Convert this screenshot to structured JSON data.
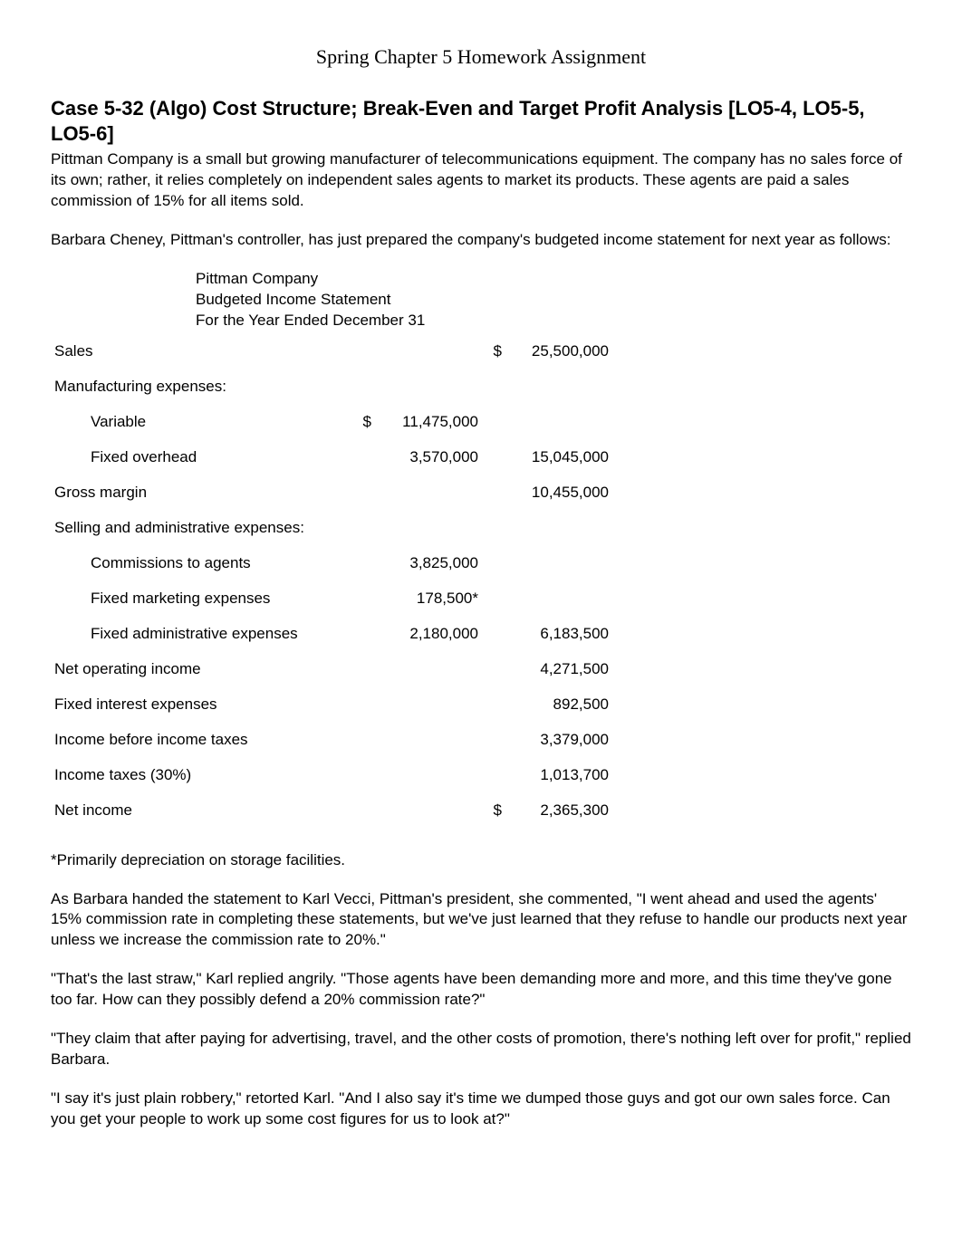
{
  "page_title": "Spring Chapter 5 Homework Assignment",
  "case_heading": "Case 5-32 (Algo) Cost Structure; Break-Even and Target Profit Analysis [LO5-4, LO5-5, LO5-6]",
  "intro_para_1": "Pittman Company is a small but growing manufacturer of telecommunications equipment. The company has no sales force of its own; rather, it relies completely on independent sales agents to market its products. These agents are paid a sales commission of 15% for all items sold.",
  "intro_para_2": "Barbara Cheney, Pittman's controller, has just prepared the company's budgeted income statement for next year as follows:",
  "statement": {
    "header_line1": "Pittman Company",
    "header_line2": "Budgeted Income Statement",
    "header_line3": "For the Year Ended December 31",
    "rows": [
      {
        "label": "Sales",
        "indent": false,
        "col1_cur": "",
        "col1": "",
        "col2_cur": "$",
        "col2": "25,500,000"
      },
      {
        "label": "Manufacturing expenses:",
        "indent": false,
        "col1_cur": "",
        "col1": "",
        "col2_cur": "",
        "col2": ""
      },
      {
        "label": "Variable",
        "indent": true,
        "col1_cur": "$",
        "col1": "11,475,000",
        "col2_cur": "",
        "col2": ""
      },
      {
        "label": "Fixed overhead",
        "indent": true,
        "col1_cur": "",
        "col1": "3,570,000",
        "col2_cur": "",
        "col2": "15,045,000"
      },
      {
        "label": "Gross margin",
        "indent": false,
        "col1_cur": "",
        "col1": "",
        "col2_cur": "",
        "col2": "10,455,000"
      },
      {
        "label": "Selling and administrative expenses:",
        "indent": false,
        "col1_cur": "",
        "col1": "",
        "col2_cur": "",
        "col2": ""
      },
      {
        "label": "Commissions to agents",
        "indent": true,
        "col1_cur": "",
        "col1": "3,825,000",
        "col2_cur": "",
        "col2": ""
      },
      {
        "label": "Fixed marketing expenses",
        "indent": true,
        "col1_cur": "",
        "col1": "178,500*",
        "col2_cur": "",
        "col2": ""
      },
      {
        "label": "Fixed administrative expenses",
        "indent": true,
        "col1_cur": "",
        "col1": "2,180,000",
        "col2_cur": "",
        "col2": "6,183,500"
      },
      {
        "label": "Net operating income",
        "indent": false,
        "col1_cur": "",
        "col1": "",
        "col2_cur": "",
        "col2": "4,271,500"
      },
      {
        "label": "Fixed interest expenses",
        "indent": false,
        "col1_cur": "",
        "col1": "",
        "col2_cur": "",
        "col2": "892,500"
      },
      {
        "label": "Income before income taxes",
        "indent": false,
        "col1_cur": "",
        "col1": "",
        "col2_cur": "",
        "col2": "3,379,000"
      },
      {
        "label": "Income taxes (30%)",
        "indent": false,
        "col1_cur": "",
        "col1": "",
        "col2_cur": "",
        "col2": "1,013,700"
      },
      {
        "label": "Net income",
        "indent": false,
        "col1_cur": "",
        "col1": "",
        "col2_cur": "$",
        "col2": "2,365,300"
      }
    ]
  },
  "footnote": "*Primarily depreciation on storage facilities.",
  "dialog_1": "As Barbara handed the statement to Karl Vecci, Pittman's president, she commented, \"I went ahead and used the agents' 15% commission rate in completing these statements, but we've just learned that they refuse to handle our products next year unless we increase the commission rate to 20%.\"",
  "dialog_2": "\"That's the last straw,\" Karl replied angrily. \"Those agents have been demanding more and more, and this time they've gone too far. How can they possibly defend a 20% commission rate?\"",
  "dialog_3": "\"They claim that after paying for advertising, travel, and the other costs of promotion, there's nothing left over for profit,\" replied Barbara.",
  "dialog_4": "\"I say it's just plain robbery,\" retorted Karl. \"And I also say it's time we dumped those guys and got our own sales force. Can you get your people to work up some cost figures for us to look at?\"",
  "colors": {
    "text": "#000000",
    "background": "#ffffff"
  },
  "typography": {
    "body_font": "Arial",
    "body_size_pt": 12,
    "title_font": "Times New Roman",
    "title_size_pt": 16,
    "heading_size_pt": 16,
    "heading_weight": "bold"
  }
}
